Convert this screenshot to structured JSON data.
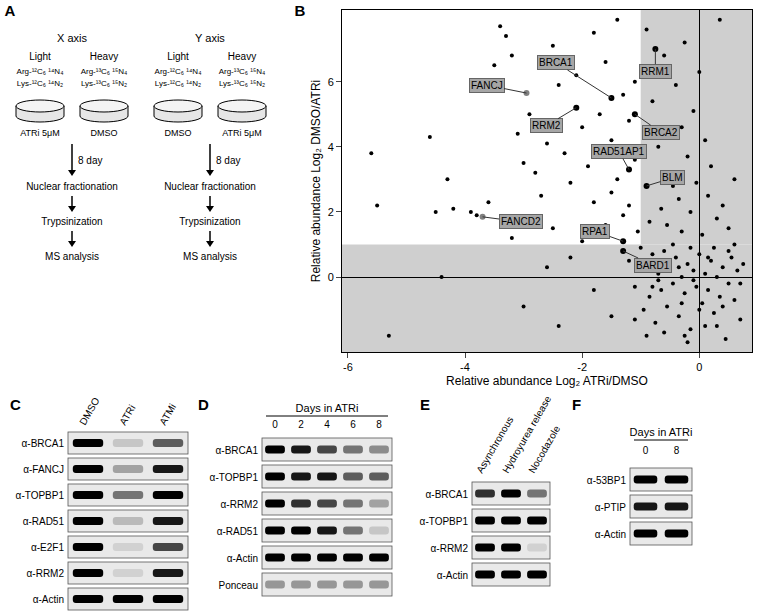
{
  "chart_data": {
    "type": "scatter",
    "x_label": "Relative abundance Log₂ ATRi/DMSO",
    "y_label": "Relative abundance Log₂ DMSO/ATRi",
    "color": "#000000",
    "x": [
      -5.6,
      -5.5,
      -4.6,
      -4.5,
      -4.4,
      -4.3,
      -4.2,
      -3.9,
      -3.8,
      -3.6,
      -3.5,
      -3.4,
      -3.3,
      -3.2,
      -3.1,
      -3.0,
      -2.9,
      -2.8,
      -2.7,
      -2.6,
      -2.5,
      -2.4,
      -2.3,
      -2.2,
      -2.1,
      -2.0,
      -1.9,
      -1.8,
      -1.8,
      -1.7,
      -1.6,
      -1.6,
      -1.5,
      -1.5,
      -1.4,
      -1.4,
      -1.3,
      -1.3,
      -1.2,
      -1.2,
      -1.1,
      -1.1,
      -1.05,
      -2.5,
      -3.2,
      -2.0,
      -5.3,
      -3.0,
      -2.4,
      -1.8,
      -2.6,
      -1.5,
      -2.2,
      -0.9,
      -0.8,
      -0.7,
      -0.6,
      -0.5,
      -0.4,
      -0.35,
      -0.3,
      -0.25,
      -0.2,
      -0.15,
      -0.1,
      -0.05,
      0.0,
      0.1,
      0.15,
      0.2,
      0.3,
      0.35,
      0.4,
      0.5,
      0.6,
      -0.55,
      -0.45,
      -0.65,
      -0.85,
      -0.95,
      -0.75,
      0.05,
      -0.3,
      -1.2,
      -1.1,
      -1.0,
      -0.95,
      -0.9,
      -0.85,
      -0.8,
      -0.75,
      -0.7,
      -0.65,
      -0.6,
      -0.55,
      -0.5,
      -0.45,
      -0.4,
      -0.35,
      -0.3,
      -0.25,
      -0.2,
      -0.15,
      -0.1,
      -0.05,
      0.0,
      0.05,
      0.1,
      0.15,
      0.2,
      0.25,
      0.3,
      0.35,
      0.4,
      0.45,
      0.5,
      0.55,
      0.6,
      0.65,
      0.7,
      0.75,
      -0.6,
      -0.2,
      0.1,
      -0.45,
      -0.15,
      0.25,
      -0.7,
      -0.3,
      0.0,
      0.4,
      -0.9,
      0.6,
      -0.1,
      -0.35,
      0.15,
      -0.55,
      0.5,
      -0.8,
      0.3,
      -0.25,
      0.7,
      -1.1
    ],
    "y": [
      3.8,
      2.2,
      4.3,
      2.0,
      0.0,
      3.0,
      2.1,
      2.0,
      1.9,
      2.3,
      6.5,
      7.7,
      7.4,
      6.8,
      4.4,
      3.5,
      5.0,
      3.2,
      2.5,
      4.1,
      7.1,
      5.9,
      3.8,
      2.9,
      6.2,
      4.6,
      3.4,
      7.5,
      2.3,
      5.0,
      6.6,
      1.6,
      4.2,
      2.6,
      7.9,
      3.0,
      5.6,
      1.9,
      4.8,
      2.2,
      6.0,
      3.6,
      1.4,
      1.5,
      1.2,
      1.1,
      -1.8,
      -0.9,
      -1.5,
      -0.4,
      0.3,
      -1.2,
      0.6,
      7.6,
      5.4,
      4.0,
      6.8,
      3.2,
      5.9,
      2.4,
      4.6,
      7.2,
      3.7,
      2.0,
      5.1,
      2.9,
      6.3,
      4.2,
      2.5,
      3.4,
      1.8,
      7.9,
      2.2,
      1.5,
      3.0,
      1.6,
      2.8,
      2.1,
      1.7,
      3.9,
      6.2,
      1.3,
      1.4,
      0.5,
      -0.3,
      0.9,
      -1.0,
      0.2,
      -0.6,
      0.7,
      -1.4,
      0.1,
      -0.4,
      0.8,
      -0.9,
      0.3,
      -0.2,
      0.6,
      -1.2,
      0.0,
      -0.5,
      0.4,
      -1.6,
      0.2,
      -0.3,
      0.7,
      -0.8,
      0.1,
      -0.4,
      0.5,
      -1.1,
      0.0,
      -0.6,
      0.3,
      -1.9,
      -0.2,
      0.6,
      -0.7,
      0.2,
      -1.3,
      0.4,
      -1.7,
      -2.0,
      -1.5,
      1.0,
      0.9,
      0.9,
      -0.1,
      -0.8,
      -1.0,
      -0.9,
      -1.8,
      1.0,
      -0.1,
      0.3,
      0.6,
      0.5,
      0.8,
      -0.3,
      -1.5,
      -1.8,
      -0.2,
      -1.3
    ],
    "labeled": [
      {
        "label": "BRCA1",
        "x": -1.5,
        "y": 5.5,
        "color": "#000000"
      },
      {
        "label": "FANCJ",
        "x": -2.95,
        "y": 5.65,
        "color": "#808080"
      },
      {
        "label": "RRM1",
        "x": -0.75,
        "y": 7.0,
        "color": "#000000"
      },
      {
        "label": "RRM2",
        "x": -2.1,
        "y": 5.2,
        "color": "#000000"
      },
      {
        "label": "BRCA2",
        "x": -1.1,
        "y": 5.0,
        "color": "#000000"
      },
      {
        "label": "RAD51AP1",
        "x": -1.2,
        "y": 3.3,
        "color": "#000000"
      },
      {
        "label": "BLM",
        "x": -0.9,
        "y": 2.8,
        "color": "#000000"
      },
      {
        "label": "FANCD2",
        "x": -3.7,
        "y": 1.85,
        "color": "#808080"
      },
      {
        "label": "RPA1",
        "x": -1.3,
        "y": 1.1,
        "color": "#000000"
      },
      {
        "label": "BARD1",
        "x": -1.3,
        "y": 0.8,
        "color": "#000000"
      }
    ],
    "thresholds": {
      "x": -1,
      "y": 1
    },
    "xlim": [
      -6.1,
      0.9
    ],
    "ylim": [
      -2.3,
      8.2
    ],
    "xticks": [
      -6,
      -4,
      -2,
      0
    ],
    "yticks": [
      0,
      2,
      4,
      6
    ],
    "grid": false
  },
  "figure": {
    "panel_B": "B",
    "panel_A": {
      "letter": "A",
      "columns": [
        {
          "heading": "X axis",
          "dishes": [
            {
              "tag": "Light",
              "isotopes": [
                "Arg-¹²C₆ ¹⁴N₄",
                "Lys-¹²C₆ ¹⁴N₂"
              ],
              "treatment": "ATRi 5μM"
            },
            {
              "tag": "Heavy",
              "isotopes": [
                "Arg-¹³C₆ ¹⁵N₄",
                "Lys-¹³C₆ ¹⁵N₂"
              ],
              "treatment": "DMSO"
            }
          ]
        },
        {
          "heading": "Y axis",
          "dishes": [
            {
              "tag": "Light",
              "isotopes": [
                "Arg-¹²C₆ ¹⁴N₄",
                "Lys-¹²C₆ ¹⁴N₂"
              ],
              "treatment": "DMSO"
            },
            {
              "tag": "Heavy",
              "isotopes": [
                "Arg-¹³C₆ ¹⁵N₄",
                "Lys-¹³C₆ ¹⁵N₂"
              ],
              "treatment": "ATRi 5μM"
            }
          ]
        }
      ],
      "steps": [
        "8 day",
        "Nuclear fractionation",
        "Trypsinization",
        "MS analysis"
      ]
    },
    "blots": [
      {
        "letter": "C",
        "header": null,
        "lanes": [
          "DMSO",
          "ATRi",
          "ATMi"
        ],
        "rotated": true,
        "rows": [
          {
            "label": "α-BRCA1",
            "intensity": [
              1,
              0.15,
              0.6
            ]
          },
          {
            "label": "α-FANCJ",
            "intensity": [
              1,
              0.3,
              0.9
            ]
          },
          {
            "label": "α-TOPBP1",
            "intensity": [
              1,
              0.5,
              1
            ]
          },
          {
            "label": "α-RAD51",
            "intensity": [
              1,
              0.2,
              0.9
            ]
          },
          {
            "label": "α-E2F1",
            "intensity": [
              1,
              0.1,
              0.7
            ]
          },
          {
            "label": "α-RRM2",
            "intensity": [
              1,
              0.1,
              0.9
            ]
          },
          {
            "label": "α-Actin",
            "intensity": [
              1,
              1,
              1
            ]
          }
        ]
      },
      {
        "letter": "D",
        "header": "Days in ATRi",
        "lanes": [
          "0",
          "2",
          "4",
          "6",
          "8"
        ],
        "rotated": false,
        "rows": [
          {
            "label": "α-BRCA1",
            "intensity": [
              1,
              0.9,
              0.7,
              0.5,
              0.4
            ]
          },
          {
            "label": "α-TOPBP1",
            "intensity": [
              1,
              0.9,
              0.9,
              0.6,
              0.6
            ]
          },
          {
            "label": "α-RRM2",
            "intensity": [
              1,
              0.8,
              0.7,
              0.5,
              0.3
            ]
          },
          {
            "label": "α-RAD51",
            "intensity": [
              1,
              1,
              0.9,
              0.5,
              0.15
            ]
          },
          {
            "label": "α-Actin",
            "intensity": [
              1,
              1,
              1,
              1,
              1
            ]
          },
          {
            "label": "Ponceau",
            "intensity": [
              0.35,
              0.35,
              0.35,
              0.35,
              0.35
            ]
          }
        ]
      },
      {
        "letter": "E",
        "header": null,
        "lanes": [
          "Asynchronous",
          "Hydroyurea release",
          "Nocodazole"
        ],
        "rotated": true,
        "rows": [
          {
            "label": "α-BRCA1",
            "intensity": [
              0.8,
              1,
              0.5
            ]
          },
          {
            "label": "α-TOPBP1",
            "intensity": [
              1,
              1,
              1
            ]
          },
          {
            "label": "α-RRM2",
            "intensity": [
              1,
              1,
              0.1
            ]
          },
          {
            "label": "α-Actin",
            "intensity": [
              1,
              1,
              1
            ]
          }
        ]
      },
      {
        "letter": "F",
        "header": "Days in ATRi",
        "lanes": [
          "0",
          "8"
        ],
        "rotated": false,
        "rows": [
          {
            "label": "α-53BP1",
            "intensity": [
              1,
              1
            ]
          },
          {
            "label": "α-PTIP",
            "intensity": [
              0.9,
              0.9
            ]
          },
          {
            "label": "α-Actin",
            "intensity": [
              1,
              1
            ]
          }
        ]
      }
    ]
  }
}
